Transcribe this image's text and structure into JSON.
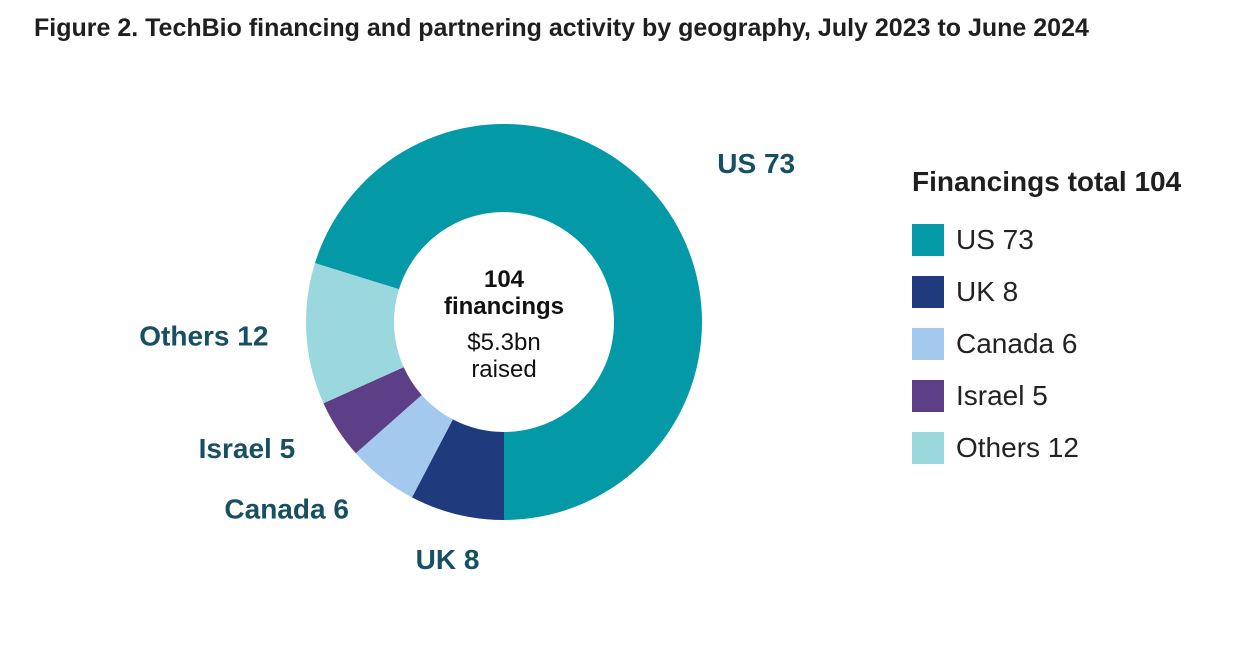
{
  "figure": {
    "title": "Figure 2. TechBio financing and partnering activity by geography, July 2023 to June 2024"
  },
  "chart_data": {
    "type": "pie",
    "donut": true,
    "title": "Figure 2. TechBio financing and partnering activity by geography, July 2023 to June 2024",
    "categories": [
      "US",
      "UK",
      "Canada",
      "Israel",
      "Others"
    ],
    "values": [
      73,
      8,
      6,
      5,
      12
    ],
    "slice_labels": [
      "US 73",
      "UK 8",
      "Canada 6",
      "Israel 5",
      "Others 12"
    ],
    "colors": [
      "#0399a6",
      "#1f3a7d",
      "#a3c9ee",
      "#5d3f87",
      "#9bd8de"
    ],
    "center_text": {
      "line1": "104",
      "line2": "financings",
      "line3": "$5.3bn",
      "line4": "raised"
    },
    "legend": {
      "title": "Financings total 104",
      "position": "right",
      "items": [
        "US 73",
        "UK 8",
        "Canada 6",
        "Israel 5",
        "Others 12"
      ]
    }
  }
}
